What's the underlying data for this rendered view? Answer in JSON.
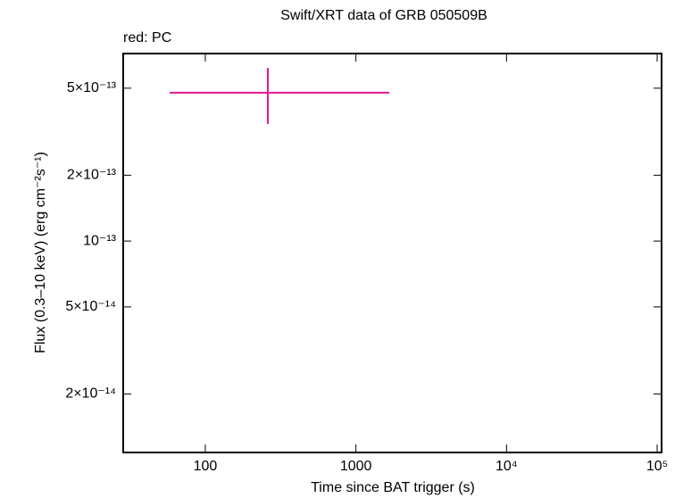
{
  "chart_data": {
    "type": "errorbar",
    "title": "Swift/XRT data of GRB 050509B",
    "subtitle": "red: PC",
    "x_label": "Time since BAT trigger (s)",
    "y_label": "Flux (0.3–10 keV) (erg cm⁻²s⁻¹)",
    "x_scale": "log",
    "y_scale": "log",
    "xlim": [
      28.5,
      107000
    ],
    "ylim": [
      1.08e-14,
      7.2e-13
    ],
    "xticks": [
      100,
      1000,
      {
        "value": 10000,
        "label": "10⁴"
      },
      {
        "value": 100000,
        "label": "10⁵"
      }
    ],
    "yticks": [
      {
        "value": 2e-14,
        "label": "2×10⁻¹⁴"
      },
      {
        "value": 5e-14,
        "label": "5×10⁻¹⁴"
      },
      {
        "value": 1e-13,
        "label": "10⁻¹³"
      },
      {
        "value": 2e-13,
        "label": "2×10⁻¹³"
      },
      {
        "value": 5e-13,
        "label": "5×10⁻¹³"
      }
    ],
    "series": [
      {
        "name": "PC",
        "color": "#e8178a",
        "x": [
          260
        ],
        "x_low": [
          58
        ],
        "x_high": [
          1667
        ],
        "values": [
          4.77e-13
        ],
        "y_low": [
          3.43e-13
        ],
        "y_high": [
          6.19e-13
        ]
      }
    ]
  }
}
